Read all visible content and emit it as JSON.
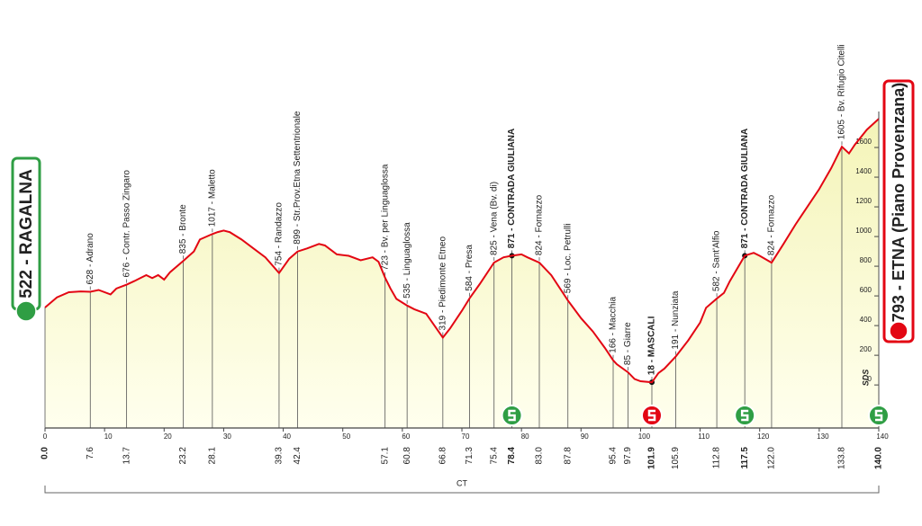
{
  "chart_data": {
    "type": "area",
    "color": "#e30613",
    "fill_top": "#f4f4b8",
    "fill_bottom": "#ffffee",
    "xlim": [
      0,
      140
    ],
    "ylim": [
      -290,
      2000
    ],
    "xticks": [
      0,
      10,
      20,
      30,
      40,
      50,
      60,
      70,
      80,
      90,
      100,
      110,
      120,
      130,
      140
    ],
    "yticks": [
      0,
      200,
      400,
      600,
      800,
      1000,
      1200,
      1400,
      1600
    ],
    "x": [
      0,
      2,
      4,
      6,
      7.6,
      9,
      11,
      12,
      13.7,
      15,
      16,
      17,
      18,
      19,
      20,
      21,
      23.2,
      25,
      26,
      28.1,
      29,
      30,
      31,
      33,
      35,
      37,
      39.3,
      41,
      42.4,
      44,
      46,
      47,
      49,
      51,
      53,
      55,
      56,
      57.1,
      58,
      59,
      60.8,
      62,
      64,
      66.8,
      68,
      70,
      71.3,
      73,
      75.4,
      77,
      78.4,
      80,
      81,
      83,
      85,
      87.8,
      90,
      92,
      94,
      95.4,
      96,
      97.9,
      99,
      100,
      101.9,
      103,
      104,
      105.9,
      108,
      110,
      111,
      112.8,
      114,
      115,
      117.5,
      119,
      120,
      122,
      124,
      126,
      128,
      130,
      132,
      133.8,
      135,
      136,
      138,
      140
    ],
    "values": [
      522,
      590,
      625,
      630,
      628,
      640,
      610,
      650,
      676,
      700,
      720,
      740,
      720,
      740,
      710,
      760,
      835,
      900,
      980,
      1017,
      1030,
      1040,
      1030,
      980,
      920,
      860,
      754,
      850,
      899,
      920,
      950,
      940,
      880,
      870,
      840,
      860,
      830,
      723,
      650,
      580,
      535,
      510,
      480,
      319,
      380,
      500,
      584,
      680,
      825,
      860,
      871,
      880,
      860,
      824,
      740,
      569,
      450,
      360,
      250,
      166,
      140,
      85,
      40,
      25,
      18,
      80,
      110,
      191,
      300,
      420,
      520,
      582,
      620,
      700,
      871,
      890,
      870,
      824,
      950,
      1080,
      1200,
      1320,
      1460,
      1605,
      1560,
      1620,
      1720,
      1793
    ],
    "start": {
      "km": {
        "value": 0,
        "label": "0.0"
      },
      "label": "522 - RAGALNA",
      "color": "#2f9e44"
    },
    "finish": {
      "km": {
        "value": 140,
        "label": "140.0"
      },
      "label": "1793 - ETNA (Piano Provenzana)",
      "color": "#e30613",
      "note": "SDS",
      "sprint": "#2f9e44"
    },
    "waypoints": [
      {
        "km": 7.6,
        "label": "628 - Adrano"
      },
      {
        "km": 13.7,
        "label": "676 - Contr. Passo Zingaro"
      },
      {
        "km": 23.2,
        "label": "835 - Bronte"
      },
      {
        "km": 28.1,
        "label": "1017 - Maletto"
      },
      {
        "km": 39.3,
        "label": "754 - Randazzo"
      },
      {
        "km": 42.4,
        "label": "899 - Str.Prov.Etna Settentrionale"
      },
      {
        "km": 57.1,
        "label": "723 - Bv. per Linguaglossa"
      },
      {
        "km": 60.8,
        "label": "535 - Linguaglossa"
      },
      {
        "km": 66.8,
        "label": "319 - Piedimonte Etneo"
      },
      {
        "km": 71.3,
        "label": "584 - Presa"
      },
      {
        "km": 75.4,
        "label": "825 - Vena (Bv. di)"
      },
      {
        "km": 78.4,
        "label": "871 - CONTRADA GIULIANA",
        "bold": true,
        "sprint": "#2f9e44"
      },
      {
        "km": {
          "value": 83,
          "label": "83.0"
        },
        "label": "824 - Fornazzo"
      },
      {
        "km": 87.8,
        "label": "569 - Loc. Petrulli"
      },
      {
        "km": 95.4,
        "label": "166 - Macchia"
      },
      {
        "km": 97.9,
        "label": "85 - Giarre"
      },
      {
        "km": 101.9,
        "label": "18 - MASCALI",
        "bold": true,
        "sprint": "#e30613"
      },
      {
        "km": 105.9,
        "label": "191 - Nunziata"
      },
      {
        "km": 112.8,
        "label": "582 - Sant'Alfio"
      },
      {
        "km": 117.5,
        "label": "871 - CONTRADA GIULIANA",
        "bold": true,
        "sprint": "#2f9e44"
      },
      {
        "km": {
          "value": 122,
          "label": "122.0"
        },
        "label": "824 - Fornazzo"
      },
      {
        "km": 133.8,
        "label": "1605 - Bv. Rifugio Citelli"
      }
    ],
    "region": "CT"
  }
}
